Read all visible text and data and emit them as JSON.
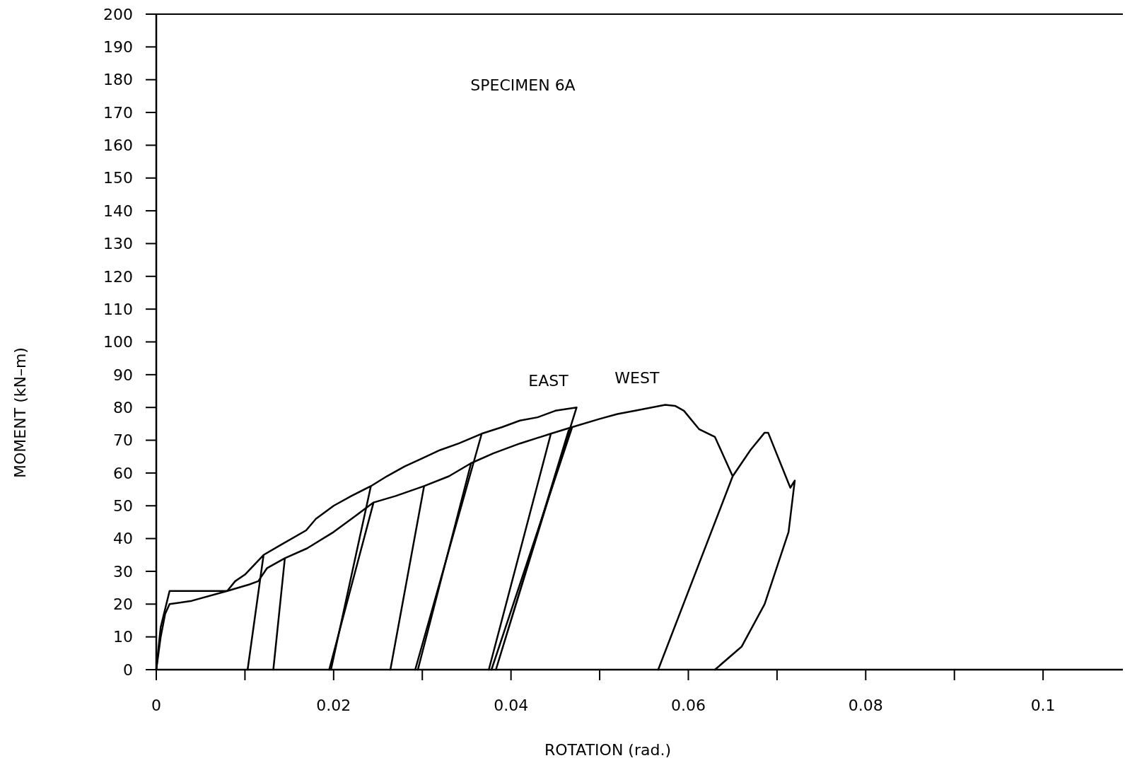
{
  "chart_data": {
    "type": "line",
    "title": "SPECIMEN 6A",
    "xlabel": "ROTATION (rad.)",
    "ylabel": "MOMENT (kN–m)",
    "xlim": [
      0,
      0.109
    ],
    "xticks": [
      0,
      {
        "value": 0.01,
        "label": null
      },
      0.02,
      {
        "value": 0.03,
        "label": null
      },
      0.04,
      {
        "value": 0.05,
        "label": null
      },
      0.06,
      {
        "value": 0.07,
        "label": null
      },
      0.08,
      {
        "value": 0.09,
        "label": null
      },
      0.1
    ],
    "ylim": [
      0,
      200
    ],
    "yticks": [
      0,
      10,
      20,
      30,
      40,
      50,
      60,
      70,
      80,
      90,
      100,
      110,
      120,
      130,
      140,
      150,
      160,
      170,
      180,
      190,
      200
    ],
    "grid": false,
    "marker": "none",
    "line_style": "solid",
    "series": [
      {
        "name": "EAST",
        "color": "#000000",
        "x": [
          0,
          0.0005,
          0.0015,
          0.002,
          0.005,
          0.008,
          0.0089,
          0.01,
          0.0121,
          0.0103,
          0.0121,
          0.014,
          0.0169,
          0.018,
          0.02,
          0.022,
          0.0242,
          0.0197,
          0.0242,
          0.026,
          0.028,
          0.03,
          0.032,
          0.0341,
          0.0367,
          0.0292,
          0.0367,
          0.039,
          0.041,
          0.043,
          0.045,
          0.0474,
          0.0467,
          0.0383,
          0.0465
        ],
        "values": [
          0,
          13,
          24,
          24,
          24,
          24,
          27,
          29,
          35,
          0,
          35,
          38,
          42.5,
          46,
          50,
          53,
          56,
          0,
          56,
          59,
          62,
          64.5,
          67,
          69,
          72,
          0,
          72,
          74,
          76,
          77,
          79,
          80,
          74,
          0,
          73
        ]
      },
      {
        "name": "WEST",
        "color": "#000000",
        "x": [
          0,
          0.0005,
          0.001,
          0.0015,
          0.004,
          0.008,
          0.0105,
          0.0115,
          0.0125,
          0.0145,
          0.0132,
          0.0145,
          0.017,
          0.02,
          0.0225,
          0.0245,
          0.0195,
          0.0245,
          0.027,
          0.0302,
          0.0264,
          0.0302,
          0.033,
          0.0355,
          0.0295,
          0.0355,
          0.038,
          0.041,
          0.0445,
          0.0375,
          0.0445,
          0.0469,
          0.0378,
          0.0469,
          0.05,
          0.052,
          0.054,
          0.0574,
          0.0585,
          0.0595,
          0.0612,
          0.063,
          0.065,
          0.0566,
          0.065,
          0.067,
          0.0686,
          0.069,
          0.0715,
          0.072,
          0.0713,
          0.0686,
          0.066,
          0.063
        ],
        "values": [
          0,
          10,
          17,
          20,
          21,
          24,
          26,
          27,
          31,
          34,
          0,
          34,
          37,
          42,
          47,
          51,
          0,
          51,
          53,
          56,
          0,
          56,
          59,
          63,
          0,
          63,
          66,
          69,
          72,
          0,
          72,
          74,
          0,
          74,
          76.5,
          78,
          79,
          80.8,
          80.5,
          79,
          73.4,
          71,
          59,
          0,
          59,
          67,
          72.3,
          72.3,
          55.5,
          57.7,
          42,
          20,
          7,
          0
        ]
      }
    ]
  }
}
